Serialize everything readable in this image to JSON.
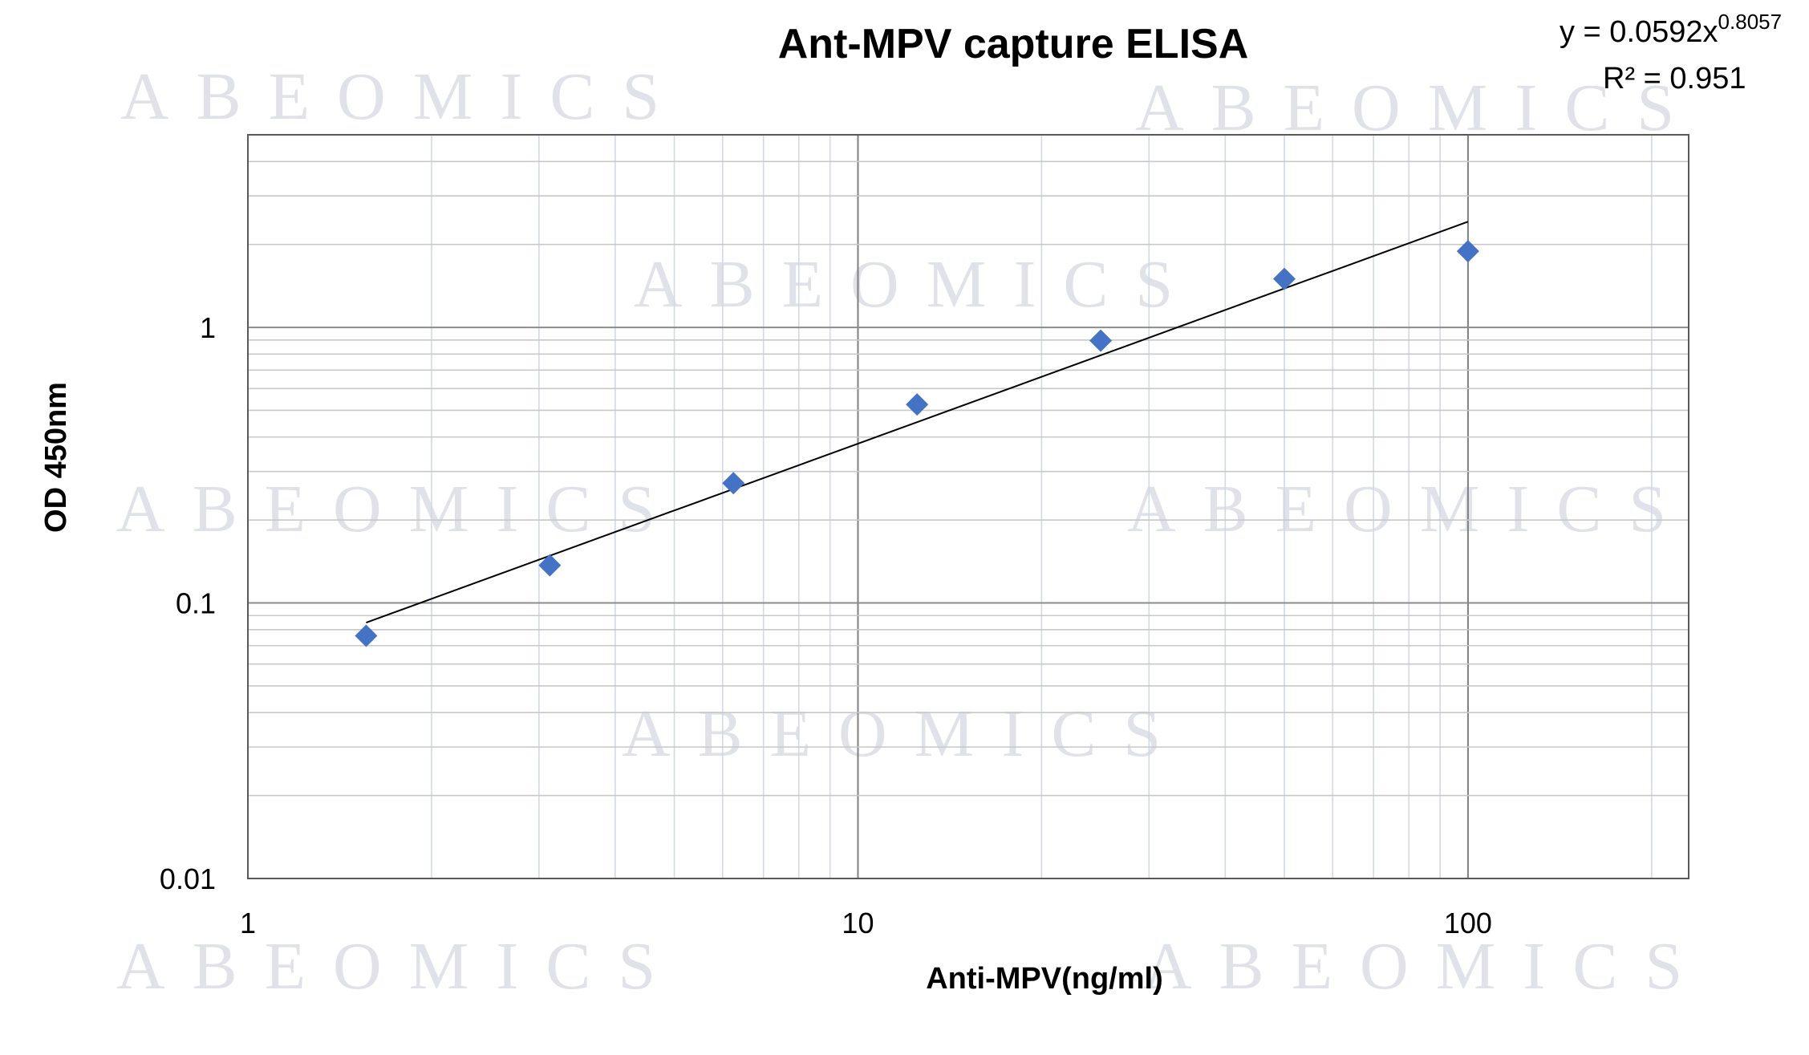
{
  "watermark_text": "ABEOMICS",
  "chart_data": {
    "type": "scatter",
    "title": "Ant-MPV capture ELISA",
    "xlabel": "Anti-MPV(ng/ml)",
    "ylabel": "OD 450nm",
    "x_scale": "log",
    "y_scale": "log",
    "xlim": [
      1,
      230
    ],
    "ylim": [
      0.01,
      5
    ],
    "x_ticks": [
      1,
      10,
      100
    ],
    "x_tick_labels": [
      "1",
      "10",
      "100"
    ],
    "y_ticks": [
      0.01,
      0.1,
      1
    ],
    "y_tick_labels": [
      "0.01",
      "0.1",
      "1"
    ],
    "grid": true,
    "legend": "none",
    "series": [
      {
        "marker": "diamond",
        "color": "#4472c4",
        "x": [
          1.5625,
          3.125,
          6.25,
          12.5,
          25,
          50,
          100
        ],
        "y": [
          0.076,
          0.137,
          0.272,
          0.525,
          0.895,
          1.5,
          1.89
        ]
      }
    ],
    "trendline": {
      "type": "power",
      "coefficient": 0.0592,
      "exponent": 0.8057,
      "x_range": [
        1.5625,
        100
      ],
      "color": "#000000",
      "equation_base": "y = 0.0592x",
      "equation_exponent": "0.8057",
      "r_squared_label": "R² = 0.951"
    }
  }
}
